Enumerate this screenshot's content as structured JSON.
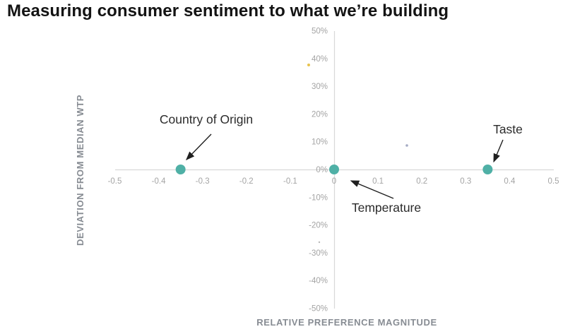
{
  "title": "Measuring consumer sentiment to what we’re building",
  "chart_data": {
    "type": "scatter",
    "title": "Measuring consumer sentiment to what we’re building",
    "xlabel": "RELATIVE PREFERENCE MAGNITUDE",
    "ylabel": "DEVIATION FROM MEDIAN WTP",
    "xlim": [
      -0.5,
      0.5
    ],
    "ylim": [
      -50,
      50
    ],
    "x_ticks": [
      -0.5,
      -0.4,
      -0.3,
      -0.2,
      -0.1,
      0,
      0.1,
      0.2,
      0.3,
      0.4,
      0.5
    ],
    "y_ticks": [
      50,
      40,
      30,
      20,
      10,
      0,
      -10,
      -20,
      -30,
      -40,
      -50
    ],
    "y_tick_suffix": "%",
    "grid": false,
    "legend": "none",
    "point_color": "#4fb0a6",
    "axis_color": "#d9d9d9",
    "arrow_color": "#1f1f1f",
    "points": [
      {
        "label": "Country of Origin",
        "x": -0.35,
        "y": 0
      },
      {
        "label": "Temperature",
        "x": 0,
        "y": 0
      },
      {
        "label": "Taste",
        "x": 0.35,
        "y": 0
      }
    ]
  }
}
